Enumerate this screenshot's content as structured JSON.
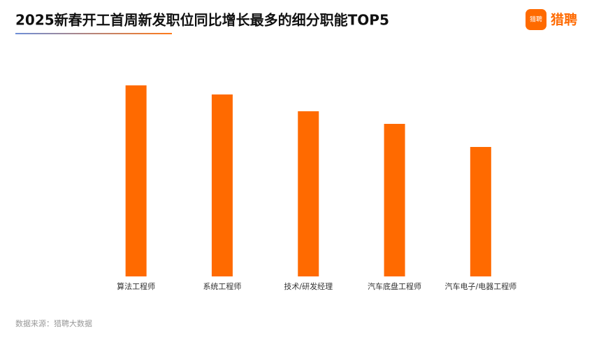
{
  "chart_data": {
    "type": "bar",
    "title": "2025新春开工首周新发职位同比增长最多的细分职能TOP5",
    "categories": [
      "算法工程师",
      "系统工程师",
      "技术/研发经理",
      "汽车底盘工程师",
      "汽车电子/电器工程师"
    ],
    "values": [
      273,
      260,
      236,
      218,
      185
    ],
    "color": "#ff6a00"
  },
  "logo": {
    "icon_text": "猎聘",
    "text": "猎聘"
  },
  "source": "数据来源：猎聘大数据"
}
